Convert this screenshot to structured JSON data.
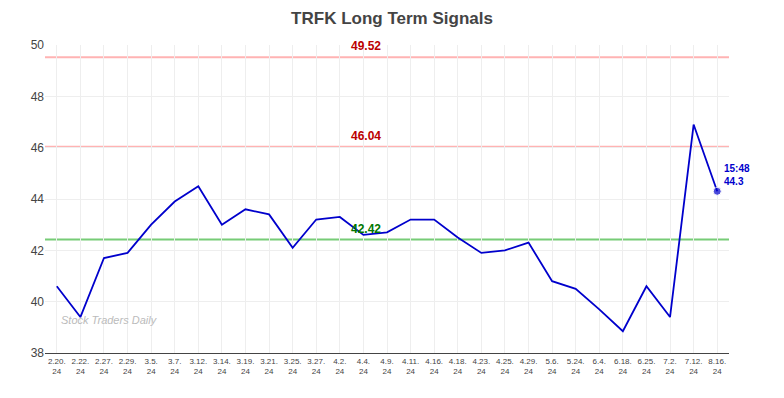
{
  "chart_data": {
    "type": "line",
    "title": "TRFK Long Term Signals",
    "categories": [
      "2.20.\n24",
      "2.22.\n24",
      "2.27.\n24",
      "2.29.\n24",
      "3.5.\n24",
      "3.7.\n24",
      "3.12.\n24",
      "3.14.\n24",
      "3.19.\n24",
      "3.21.\n24",
      "3.25.\n24",
      "3.27.\n24",
      "4.2.\n24",
      "4.4.\n24",
      "4.9.\n24",
      "4.11.\n24",
      "4.16.\n24",
      "4.18.\n24",
      "4.23.\n24",
      "4.25.\n24",
      "4.29.\n24",
      "5.6.\n24",
      "5.24.\n24",
      "6.4.\n24",
      "6.18.\n24",
      "6.25.\n24",
      "7.2.\n24",
      "7.12.\n24",
      "8.16.\n24"
    ],
    "values": [
      40.6,
      39.4,
      41.7,
      41.9,
      43.0,
      43.9,
      44.5,
      43.0,
      43.6,
      43.4,
      42.1,
      43.2,
      43.3,
      42.6,
      42.7,
      43.2,
      43.2,
      42.5,
      41.9,
      42.0,
      42.3,
      40.8,
      40.5,
      39.7,
      38.85,
      40.6,
      39.4,
      46.9,
      44.3
    ],
    "color": "#0000cc",
    "hlines": [
      {
        "value": 49.52,
        "color": "#ffb3b3",
        "label": "49.52",
        "label_color": "#bb0000"
      },
      {
        "value": 46.04,
        "color": "#ffb3b3",
        "label": "46.04",
        "label_color": "#bb0000"
      },
      {
        "value": 42.42,
        "color": "#77cc77",
        "label": "42.42",
        "label_color": "#007700"
      }
    ],
    "end_annotation": {
      "text": "15:48\n44.3",
      "color": "#0000cc"
    },
    "watermark": "Stock Traders Daily",
    "ylim": [
      38,
      50
    ],
    "yticks": [
      38,
      40,
      42,
      44,
      46,
      48,
      50
    ],
    "grid": true
  }
}
